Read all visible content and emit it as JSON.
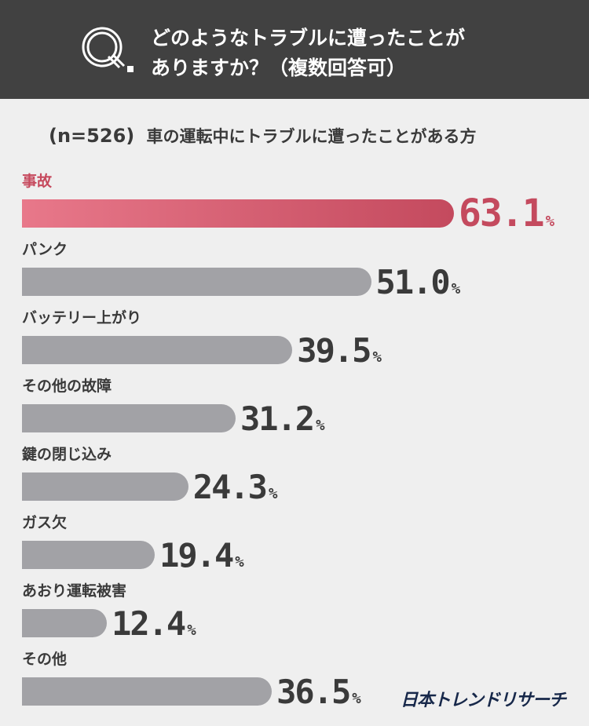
{
  "header": {
    "question": "どのようなトラブルに遭ったことが\nありますか？（複数回答可）"
  },
  "subtitle": {
    "n": "(n=526)",
    "text": "車の運転中にトラブルに遭ったことがある方"
  },
  "logo": "日本トレンドリサーチ",
  "colors": {
    "header_bg": "#414141",
    "highlight": "#c44a5e",
    "bar_gray": "#a2a2a6",
    "background": "#efefef"
  },
  "chart_data": {
    "type": "bar",
    "orientation": "horizontal",
    "unit": "%",
    "categories": [
      "事故",
      "パンク",
      "バッテリー上がり",
      "その他の故障",
      "鍵の閉じ込み",
      "ガス欠",
      "あおり運転被害",
      "その他"
    ],
    "values": [
      63.1,
      51.0,
      39.5,
      31.2,
      24.3,
      19.4,
      12.4,
      36.5
    ],
    "labels": [
      "63.1",
      "51.0",
      "39.5",
      "31.2",
      "24.3",
      "19.4",
      "12.4",
      "36.5"
    ],
    "highlight_index": 0,
    "xlim": [
      0,
      100
    ]
  }
}
